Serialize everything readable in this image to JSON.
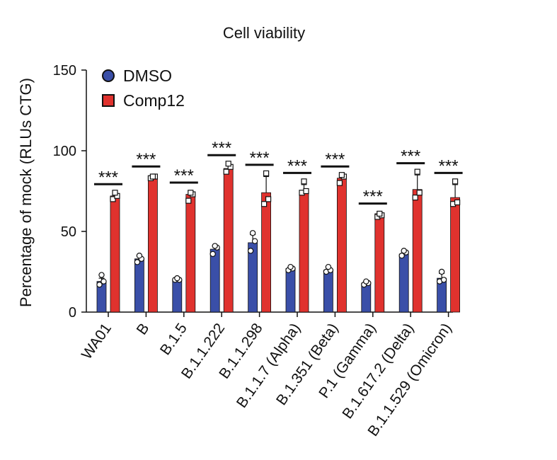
{
  "chart_data": {
    "type": "bar",
    "title": "Cell viability",
    "ylabel": "Percentage of mock (RLUs CTG)",
    "xlabel": "",
    "ylim": [
      0,
      150
    ],
    "yticks": [
      0,
      50,
      100,
      150
    ],
    "categories": [
      "WA01",
      "B",
      "B.1.5",
      "B.1.1.222",
      "B.1.1.298",
      "B.1.1.7 (Alpha)",
      "B.1.351 (Beta)",
      "P.1 (Gamma)",
      "B.1.617.2 (Delta)",
      "B.1.1.529 (Omicron)"
    ],
    "series": [
      {
        "name": "DMSO",
        "color": "#3a4fa8",
        "marker": "circle",
        "values": [
          19,
          33,
          20,
          39,
          43,
          27,
          26,
          18,
          36,
          21
        ],
        "errors": [
          2,
          2,
          1,
          2,
          5,
          1,
          2,
          1,
          2,
          3
        ],
        "points": [
          [
            17,
            19,
            23
          ],
          [
            31,
            33,
            35
          ],
          [
            20,
            20,
            21
          ],
          [
            36,
            40,
            41
          ],
          [
            38,
            44,
            49
          ],
          [
            26,
            27,
            28
          ],
          [
            25,
            26,
            28
          ],
          [
            17,
            18,
            19
          ],
          [
            35,
            37,
            38
          ],
          [
            19,
            20,
            25
          ]
        ]
      },
      {
        "name": "Comp12",
        "color": "#e0322e",
        "marker": "square",
        "values": [
          72,
          84,
          73,
          89,
          74,
          75,
          83,
          61,
          76,
          71
        ],
        "errors": [
          2,
          1,
          2,
          2,
          10,
          4,
          2,
          1,
          9,
          8
        ],
        "points": [
          [
            70,
            72,
            74
          ],
          [
            83,
            84,
            84
          ],
          [
            69,
            73,
            74
          ],
          [
            87,
            90,
            92
          ],
          [
            67,
            70,
            86
          ],
          [
            74,
            75,
            81
          ],
          [
            80,
            84,
            85
          ],
          [
            59,
            60,
            61
          ],
          [
            71,
            74,
            87
          ],
          [
            67,
            68,
            81
          ]
        ]
      }
    ],
    "significance": [
      "***",
      "***",
      "***",
      "***",
      "***",
      "***",
      "***",
      "***",
      "***",
      "***"
    ],
    "legend": {
      "position": "top-left",
      "entries": [
        "DMSO",
        "Comp12"
      ]
    },
    "grid": false
  }
}
